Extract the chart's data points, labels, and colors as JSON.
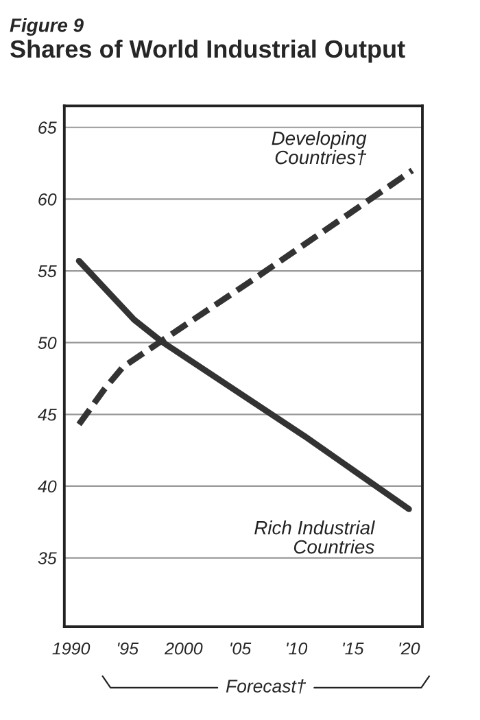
{
  "chart_data": {
    "type": "line",
    "subtitle": "Figure 9",
    "title": "Shares of World Industrial Output",
    "series": [
      {
        "name": "Developing\nCountries†",
        "color": "#333333",
        "line_style": "dashed",
        "x": [
          1990.7,
          1993,
          1994.6,
          1998,
          2006,
          2020.3
        ],
        "values": [
          44.3,
          46.8,
          48.3,
          50.1,
          54.3,
          62.0
        ]
      },
      {
        "name": "Rich Industrial\nCountries",
        "color": "#333333",
        "line_style": "solid",
        "x": [
          1990.7,
          1995.6,
          1998,
          2010.7,
          2020
        ],
        "values": [
          55.7,
          51.6,
          50.1,
          43.5,
          38.4
        ]
      }
    ],
    "xlim": [
      1989.4,
      2021.2
    ],
    "ylim": [
      30.2,
      66.5
    ],
    "xticks": [
      1990,
      {
        "value": 1995,
        "label": "'95"
      },
      2000,
      {
        "value": 2005,
        "label": "'05"
      },
      {
        "value": 2010,
        "label": "'10"
      },
      {
        "value": 2015,
        "label": "'15"
      },
      {
        "value": 2020,
        "label": "'20"
      }
    ],
    "yticks": [
      35,
      40,
      45,
      50,
      55,
      60,
      65
    ],
    "grid": "y",
    "legend": false,
    "annotations": [
      "Forecast†"
    ]
  }
}
